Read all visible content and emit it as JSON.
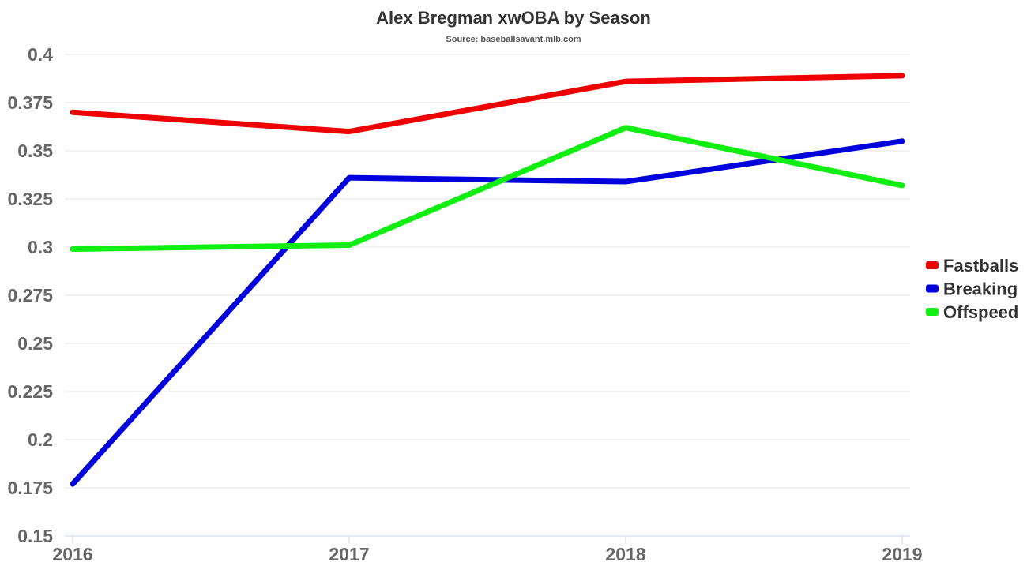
{
  "chart_data": {
    "type": "line",
    "title": "Alex Bregman xwOBA by Season",
    "subtitle": "Source: baseballsavant.mlb.com",
    "xlabel": "",
    "ylabel": "",
    "categories": [
      "2016",
      "2017",
      "2018",
      "2019"
    ],
    "ylim": [
      0.15,
      0.4
    ],
    "yticks": [
      "0.15",
      "0.175",
      "0.2",
      "0.225",
      "0.25",
      "0.275",
      "0.3",
      "0.325",
      "0.35",
      "0.375",
      "0.4"
    ],
    "grid": true,
    "legend_position": "right",
    "series": [
      {
        "name": "Fastballs",
        "color": "#ee0000",
        "values": [
          0.37,
          0.36,
          0.386,
          0.389
        ]
      },
      {
        "name": "Breaking",
        "color": "#0000dd",
        "values": [
          0.177,
          0.336,
          0.334,
          0.355
        ]
      },
      {
        "name": "Offspeed",
        "color": "#11ee11",
        "values": [
          0.299,
          0.301,
          0.362,
          0.332
        ]
      }
    ]
  }
}
